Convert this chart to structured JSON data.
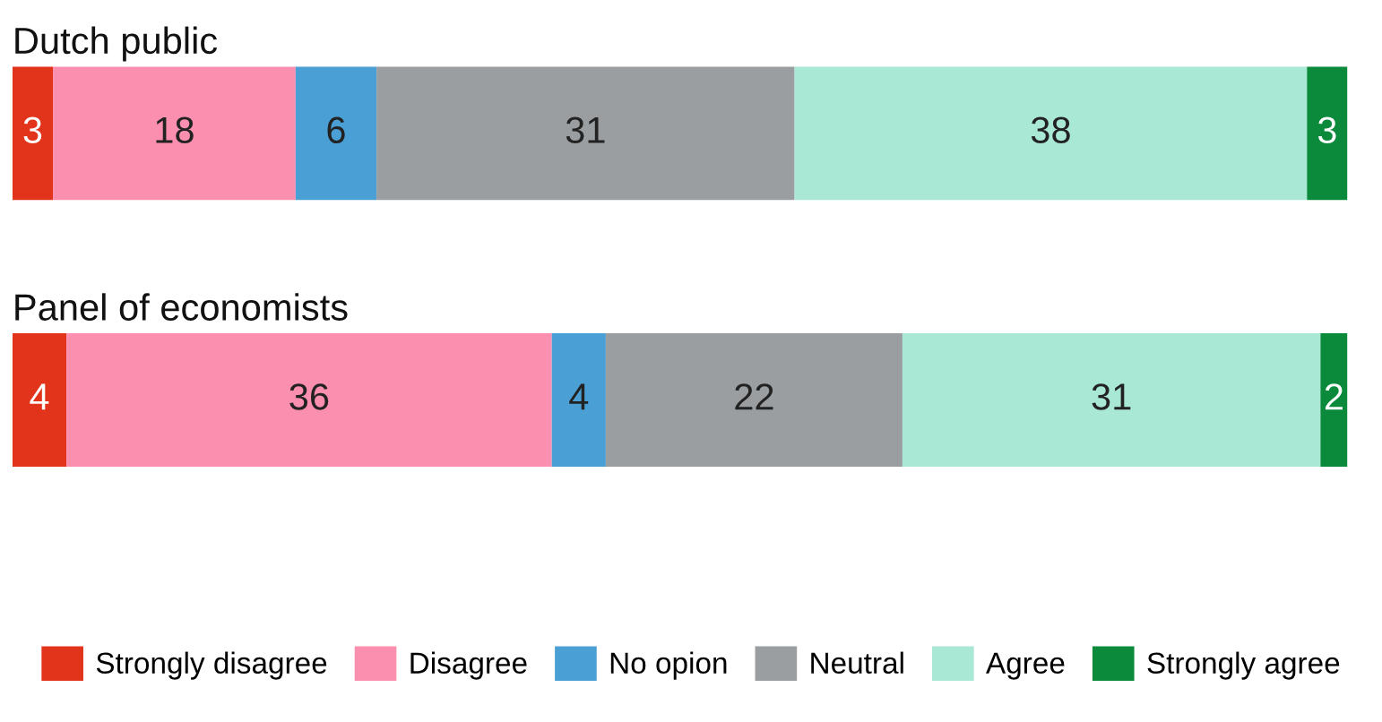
{
  "chart_data": {
    "type": "bar",
    "orientation": "horizontal",
    "stacked": true,
    "data_labels": true,
    "legend": "bottom",
    "categories": [
      "Dutch public",
      "Panel of economists"
    ],
    "series": [
      {
        "name": "Strongly disagree",
        "color": "#e2341b",
        "values": [
          3,
          4
        ]
      },
      {
        "name": "Disagree",
        "color": "#fb8fb0",
        "values": [
          18,
          36
        ]
      },
      {
        "name": "No opion",
        "color": "#4a9fd5",
        "values": [
          6,
          4
        ]
      },
      {
        "name": "Neutral",
        "color": "#9b9ea0",
        "values": [
          31,
          22
        ]
      },
      {
        "name": "Agree",
        "color": "#a8e8d5",
        "values": [
          38,
          31
        ]
      },
      {
        "name": "Strongly agree",
        "color": "#0a8a3a",
        "values": [
          3,
          2
        ]
      }
    ]
  }
}
